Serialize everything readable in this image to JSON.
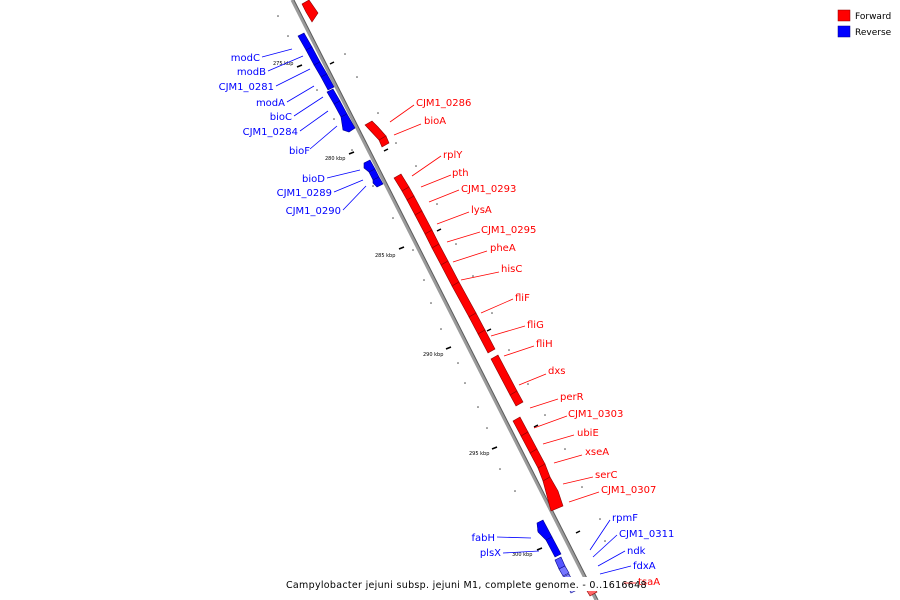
{
  "legend": {
    "forward_label": "Forward",
    "reverse_label": "Reverse",
    "forward_color": "#ff0000",
    "reverse_color": "#0000ff"
  },
  "title": "Campylobacter jejuni subsp. jejuni M1, complete genome. - 0..1616648",
  "ticks": [
    "275 kbp",
    "280 kbp",
    "285 kbp",
    "290 kbp",
    "295 kbp",
    "300 kbp"
  ],
  "reverse_genes": [
    "modC",
    "modB",
    "CJM1_0281",
    "modA",
    "bioC",
    "CJM1_0284",
    "bioF",
    "bioD",
    "CJM1_0289",
    "CJM1_0290",
    "fabH",
    "plsX",
    "rpmF",
    "CJM1_0311",
    "ndk",
    "fdxA"
  ],
  "forward_genes": [
    "CJM1_0286",
    "bioA",
    "rplY",
    "pth",
    "CJM1_0293",
    "lysA",
    "CJM1_0295",
    "pheA",
    "hisC",
    "fliF",
    "fliG",
    "fliH",
    "dxs",
    "perR",
    "CJM1_0303",
    "ubiE",
    "xseA",
    "serC",
    "CJM1_0307",
    "tsaA"
  ]
}
